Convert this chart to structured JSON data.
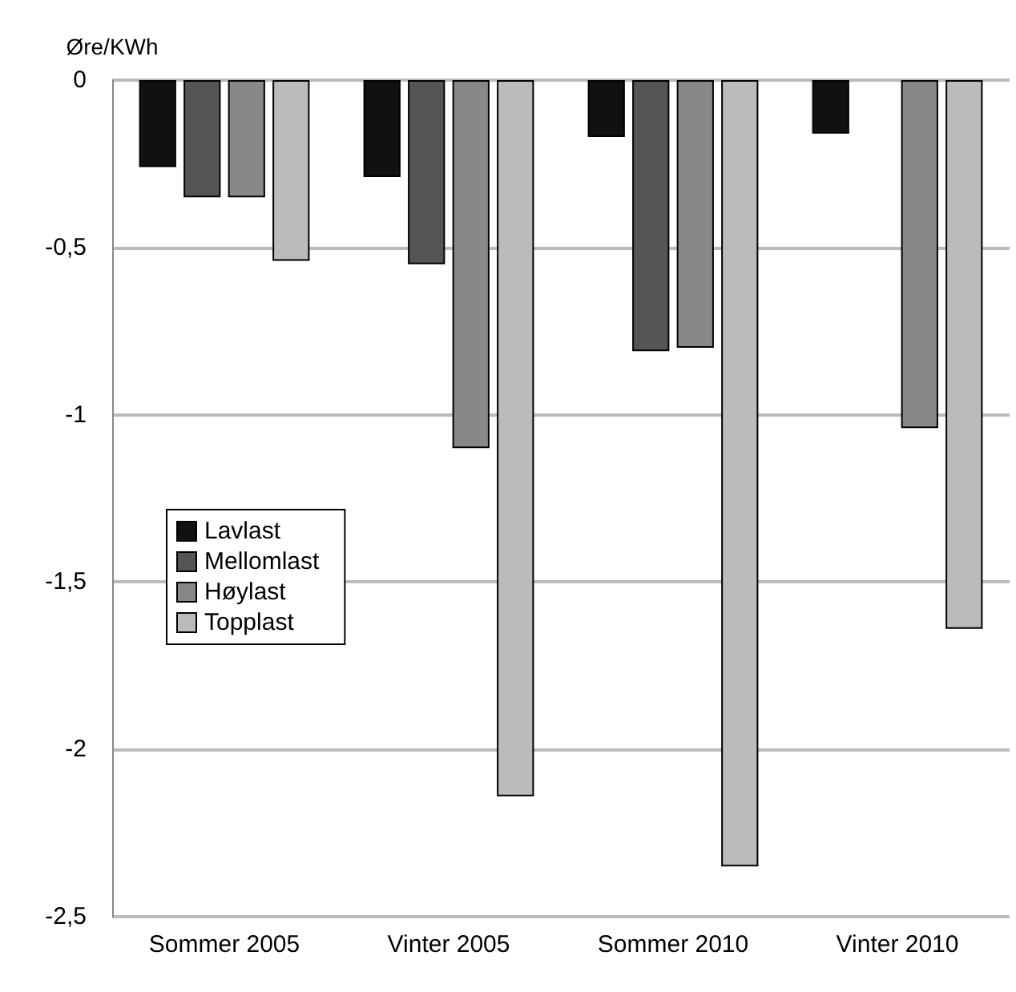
{
  "chart_data": {
    "type": "bar",
    "ylabel": "Øre/KWh",
    "categories": [
      "Sommer 2005",
      "Vinter 2005",
      "Sommer 2010",
      "Vinter 2010"
    ],
    "series": [
      {
        "name": "Lavlast",
        "color": "#111111",
        "values": [
          -0.26,
          -0.29,
          -0.17,
          -0.16
        ]
      },
      {
        "name": "Mellomlast",
        "color": "#555555",
        "values": [
          -0.35,
          -0.55,
          -0.81,
          null
        ]
      },
      {
        "name": "Høylast",
        "color": "#888888",
        "values": [
          -0.35,
          -1.1,
          -0.8,
          -1.04
        ]
      },
      {
        "name": "Topplast",
        "color": "#bbbbbb",
        "values": [
          -0.54,
          -2.14,
          -2.35,
          -1.64
        ]
      }
    ],
    "ylim": [
      -2.5,
      0
    ],
    "yticks": [
      {
        "value": -2.5,
        "label": "-2,5"
      },
      {
        "value": -2,
        "label": "-2"
      },
      {
        "value": -1.5,
        "label": "-1,5"
      },
      {
        "value": -1,
        "label": "-1"
      },
      {
        "value": -0.5,
        "label": "-0,5"
      },
      {
        "value": 0,
        "label": "0"
      }
    ],
    "grid": "y",
    "legend": "left"
  }
}
